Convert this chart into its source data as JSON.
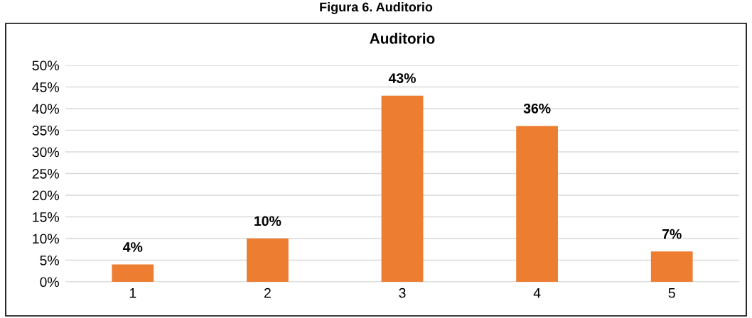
{
  "chart_data": {
    "type": "bar",
    "title": "Auditorio",
    "annotations": [
      "Figura 6. Auditorio"
    ],
    "categories": [
      "1",
      "2",
      "3",
      "4",
      "5"
    ],
    "values": [
      4,
      10,
      43,
      36,
      7
    ],
    "value_labels": [
      "4%",
      "10%",
      "43%",
      "36%",
      "7%"
    ],
    "color": "#ed7d31",
    "ylim": [
      0,
      50
    ],
    "yticks": [
      {
        "value": 0,
        "label": "0%"
      },
      {
        "value": 5,
        "label": "5%"
      },
      {
        "value": 10,
        "label": "10%"
      },
      {
        "value": 15,
        "label": "15%"
      },
      {
        "value": 20,
        "label": "20%"
      },
      {
        "value": 25,
        "label": "25%"
      },
      {
        "value": 30,
        "label": "30%"
      },
      {
        "value": 35,
        "label": "35%"
      },
      {
        "value": 40,
        "label": "40%"
      },
      {
        "value": 45,
        "label": "45%"
      },
      {
        "value": 50,
        "label": "50%"
      }
    ],
    "grid": "y",
    "legend": false
  }
}
